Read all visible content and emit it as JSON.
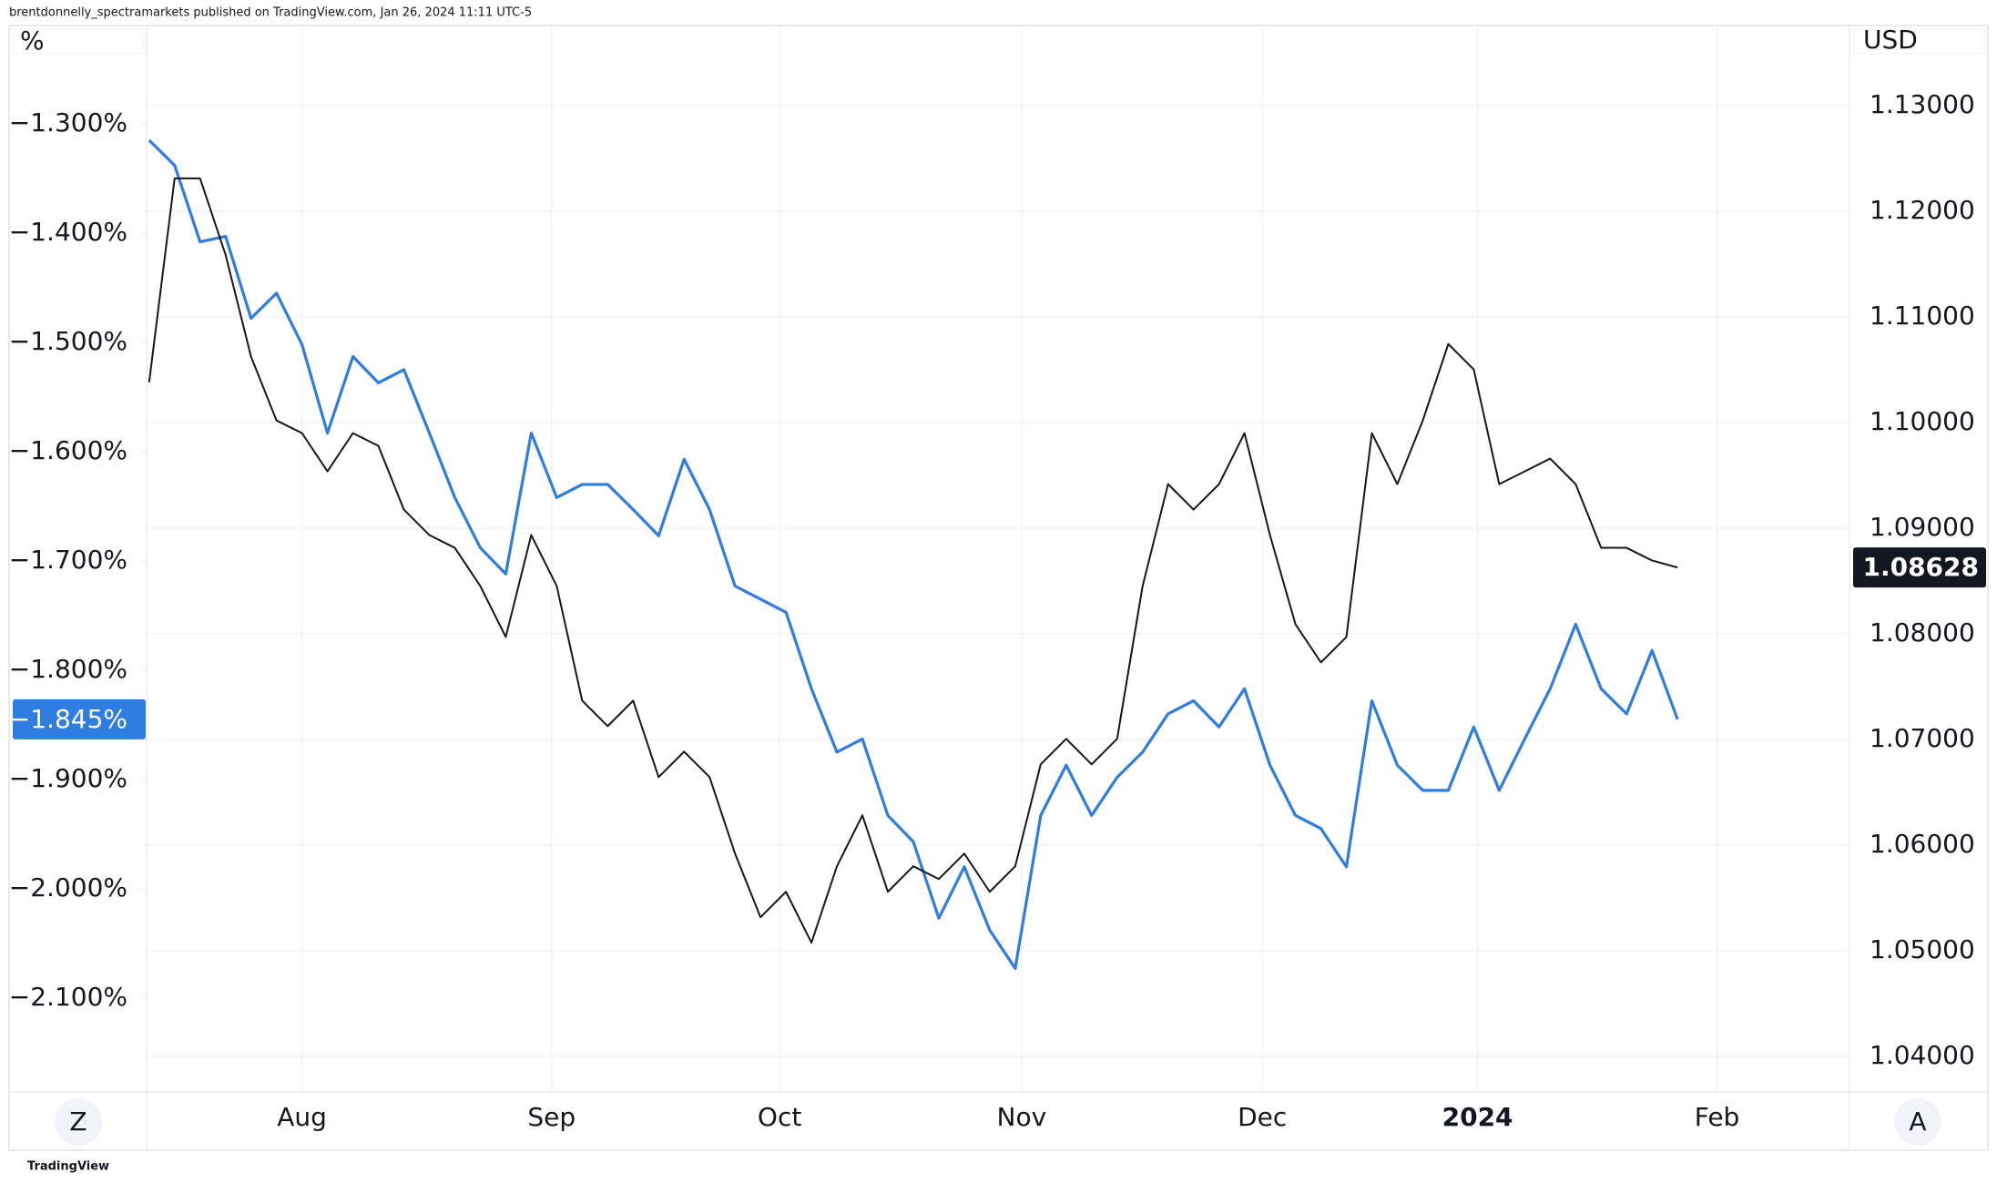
{
  "header": "brentdonnelly_spectramarkets published on TradingView.com, Jan 26, 2024 11:11 UTC-5",
  "footer": "TradingView",
  "buttons": [
    "Z",
    "A"
  ],
  "chart_data": {
    "type": "line",
    "ylabel": "%",
    "y2label": "USD",
    "x": [
      0,
      1,
      2,
      3,
      4,
      5,
      6,
      7,
      8,
      9,
      10,
      11,
      12,
      13,
      14,
      15,
      16,
      17,
      18,
      19,
      20,
      21,
      22,
      23,
      24,
      25,
      26,
      27,
      28,
      29,
      30,
      31,
      32,
      33,
      34,
      35,
      36,
      37,
      38,
      39,
      40,
      41,
      42,
      43,
      44,
      45,
      46,
      47,
      48,
      49,
      50,
      51,
      52,
      53,
      54,
      55,
      56,
      57,
      58,
      59,
      60
    ],
    "xlim": [
      -0.1,
      66.75
    ],
    "xticks": [
      {
        "value": 6,
        "label": "Aug"
      },
      {
        "value": 15.8,
        "label": "Sep"
      },
      {
        "value": 24.75,
        "label": "Oct"
      },
      {
        "value": 34.25,
        "label": "Nov"
      },
      {
        "value": 43.7,
        "label": "Dec"
      },
      {
        "value": 52.15,
        "label": "2024"
      },
      {
        "value": 61.55,
        "label": "Feb"
      }
    ],
    "ylim": [
      -2.186,
      -1.21
    ],
    "yticks": [
      {
        "value": -1.3,
        "label": "−1.300%"
      },
      {
        "value": -1.4,
        "label": "−1.400%"
      },
      {
        "value": -1.5,
        "label": "−1.500%"
      },
      {
        "value": -1.6,
        "label": "−1.600%"
      },
      {
        "value": -1.7,
        "label": "−1.700%"
      },
      {
        "value": -1.8,
        "label": "−1.800%"
      },
      {
        "value": -1.9,
        "label": "−1.900%"
      },
      {
        "value": -2.0,
        "label": "−2.000%"
      },
      {
        "value": -2.1,
        "label": "−2.100%"
      }
    ],
    "y2lim": [
      1.03662,
      1.1376
    ],
    "y2ticks": [
      {
        "value": 1.13,
        "label": "1.13000"
      },
      {
        "value": 1.12,
        "label": "1.12000"
      },
      {
        "value": 1.11,
        "label": "1.11000"
      },
      {
        "value": 1.1,
        "label": "1.10000"
      },
      {
        "value": 1.09,
        "label": "1.09000"
      },
      {
        "value": 1.08,
        "label": "1.08000"
      },
      {
        "value": 1.07,
        "label": "1.07000"
      },
      {
        "value": 1.06,
        "label": "1.06000"
      },
      {
        "value": 1.05,
        "label": "1.05000"
      },
      {
        "value": 1.04,
        "label": "1.04000"
      }
    ],
    "grid": true,
    "series": [
      {
        "color": "#2f7de1",
        "axis": "y",
        "last_label": "−1.845%",
        "values": [
          -1.315,
          -1.338,
          -1.408,
          -1.403,
          -1.478,
          -1.455,
          -1.502,
          -1.583,
          -1.513,
          -1.537,
          -1.525,
          -1.583,
          -1.642,
          -1.688,
          -1.712,
          -1.583,
          -1.642,
          -1.63,
          -1.63,
          -1.653,
          -1.677,
          -1.607,
          -1.653,
          -1.723,
          -1.735,
          -1.747,
          -1.817,
          -1.875,
          -1.863,
          -1.933,
          -1.957,
          -2.027,
          -1.98,
          -2.038,
          -2.073,
          -1.933,
          -1.887,
          -1.933,
          -1.898,
          -1.875,
          -1.84,
          -1.828,
          -1.852,
          -1.817,
          -1.887,
          -1.933,
          -1.945,
          -1.98,
          -1.828,
          -1.887,
          -1.91,
          -1.91,
          -1.852,
          -1.91,
          -1.863,
          -1.817,
          -1.758,
          -1.817,
          -1.84,
          -1.782,
          -1.845
        ]
      },
      {
        "color": "#131722",
        "axis": "y2",
        "last_label": "1.08628",
        "values": [
          1.10382,
          1.12312,
          1.12312,
          1.11589,
          1.10624,
          1.1002,
          1.099,
          1.09538,
          1.099,
          1.09779,
          1.09176,
          1.08935,
          1.08814,
          1.08452,
          1.0797,
          1.08935,
          1.08452,
          1.07367,
          1.07126,
          1.07367,
          1.06643,
          1.06884,
          1.06643,
          1.05919,
          1.05316,
          1.05557,
          1.05075,
          1.05799,
          1.06281,
          1.05557,
          1.05799,
          1.05678,
          1.05919,
          1.05557,
          1.05799,
          1.06764,
          1.07005,
          1.06764,
          1.07005,
          1.08452,
          1.09417,
          1.09176,
          1.09417,
          1.099,
          1.08935,
          1.08091,
          1.07729,
          1.0797,
          1.099,
          1.09417,
          1.1002,
          1.10744,
          1.10503,
          1.09417,
          1.09538,
          1.09659,
          1.09417,
          1.08814,
          1.08814,
          1.08694,
          1.08628
        ]
      }
    ]
  }
}
